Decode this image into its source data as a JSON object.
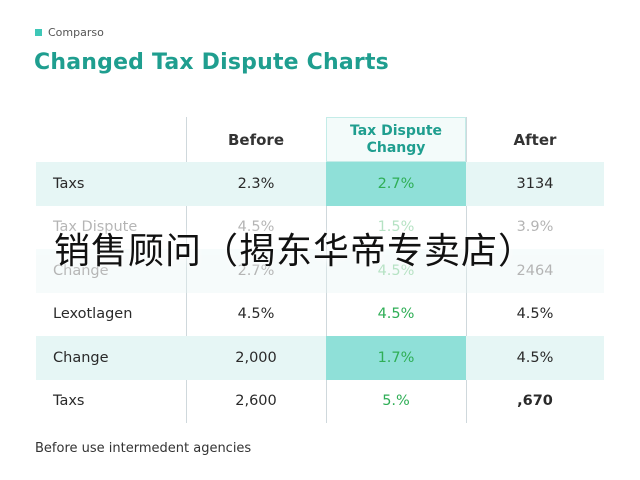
{
  "header": {
    "tag": "Comparso",
    "title": "Changed Tax Dispute Charts",
    "accent": "#1f9e8f"
  },
  "table": {
    "columns": [
      "",
      "Before",
      "Tax Dispute\nChangy",
      "After"
    ],
    "column_line1": "Tax Dispute",
    "column_line2": "Changy",
    "rows": [
      {
        "label": "Taxs",
        "before": "2.3%",
        "change": "2.7%",
        "after": "3134"
      },
      {
        "label": "Tax Dispute",
        "before": "4.5%",
        "change": "1.5%",
        "after": "3.9%"
      },
      {
        "label": "Change",
        "before": "2.7%",
        "change": "4.5%",
        "after": "2464"
      },
      {
        "label": "Lexotlagen",
        "before": "4.5%",
        "change": "4.5%",
        "after": "4.5%"
      },
      {
        "label": "Change",
        "before": "2,000",
        "change": "1.7%",
        "after": "4.5%"
      },
      {
        "label": "Taxs",
        "before": "2,600",
        "change": "5.%",
        "after": ",670"
      }
    ]
  },
  "footnote": "Before use intermedent agencies",
  "overlay": "销售顾问（揭东华帝专卖店）"
}
